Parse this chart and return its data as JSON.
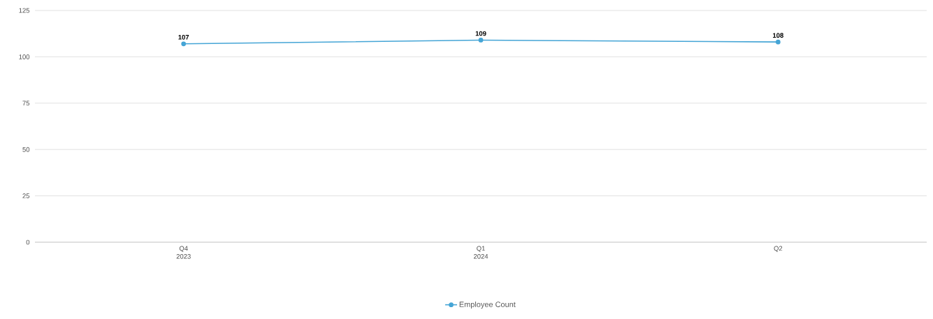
{
  "chart_data": {
    "type": "line",
    "categories": [
      "Q4 2023",
      "Q1 2024",
      "Q2"
    ],
    "series": [
      {
        "name": "Employee Count",
        "color": "#45a5d6",
        "values": [
          107,
          109,
          108
        ]
      }
    ],
    "ylim": [
      0,
      125
    ],
    "yticks": [
      0,
      25,
      50,
      75,
      100,
      125
    ],
    "grid": "y",
    "legend": "bottom",
    "marker": "circle",
    "line_style": "solid",
    "data_labels": true
  }
}
